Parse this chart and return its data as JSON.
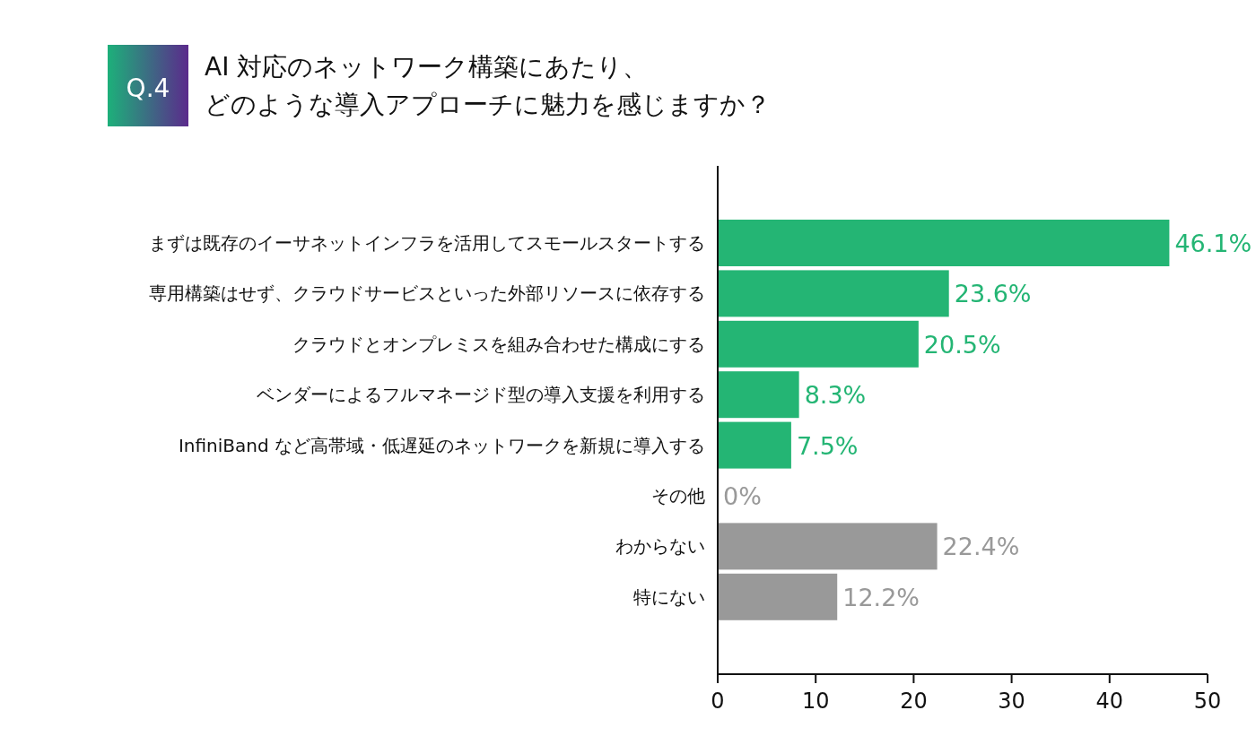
{
  "chart_data": {
    "type": "bar",
    "orientation": "horizontal",
    "title": "AI 対応のネットワーク構築にあたり、どのような導入アプローチに魅力を感じますか？",
    "annotations": [
      "Q.4"
    ],
    "categories": [
      "まずは既存のイーサネットインフラを活用してスモールスタートする",
      "専用構築はせず、クラウドサービスといった外部リソースに依存する",
      "クラウドとオンプレミスを組み合わせた構成にする",
      "ベンダーによるフルマネージド型の導入支援を利用する",
      "InfiniBand など高帯域・低遅延のネットワークを新規に導入する",
      "その他",
      "わからない",
      "特にない"
    ],
    "values": [
      46.1,
      23.6,
      20.5,
      8.3,
      7.5,
      0,
      22.4,
      12.2
    ],
    "colors": [
      "#24b574",
      "#24b574",
      "#24b574",
      "#24b574",
      "#24b574",
      "#999999",
      "#999999",
      "#999999"
    ],
    "value_labels": [
      "46.1%",
      "23.6%",
      "20.5%",
      "8.3%",
      "7.5%",
      "0%",
      "22.4%",
      "12.2%"
    ],
    "xlim": [
      0,
      50
    ],
    "xticks": [
      0,
      10,
      20,
      30,
      40,
      50
    ],
    "grid": false,
    "legend": false
  }
}
